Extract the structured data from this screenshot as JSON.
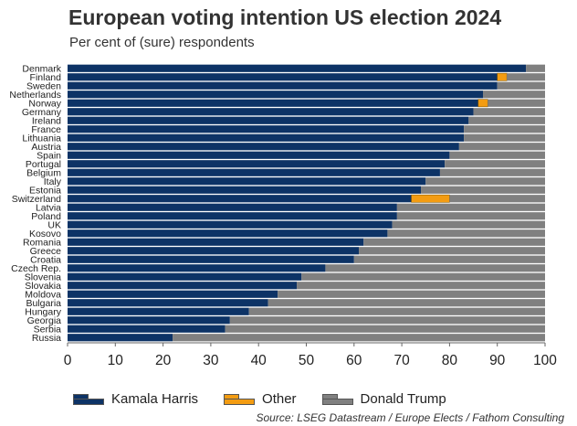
{
  "title": "European voting intention US election 2024",
  "subtitle": "Per cent of (sure) respondents",
  "source": "Source: LSEG Datastream / Europe Elects / Fathom Consulting",
  "colors": {
    "harris": "#0d3366",
    "other": "#f39c12",
    "trump": "#808080"
  },
  "chart_data": {
    "type": "bar",
    "orientation": "horizontal",
    "stacked": true,
    "title": "European voting intention US election 2024",
    "subtitle": "Per cent of (sure) respondents",
    "xlabel": "",
    "ylabel": "",
    "xlim": [
      0,
      100
    ],
    "xticks": [
      0,
      10,
      20,
      30,
      40,
      50,
      60,
      70,
      80,
      90,
      100
    ],
    "categories": [
      "Denmark",
      "Finland",
      "Sweden",
      "Netherlands",
      "Norway",
      "Germany",
      "Ireland",
      "France",
      "Lithuania",
      "Austria",
      "Spain",
      "Portugal",
      "Belgium",
      "Italy",
      "Estonia",
      "Switzerland",
      "Latvia",
      "Poland",
      "UK",
      "Kosovo",
      "Romania",
      "Greece",
      "Croatia",
      "Czech Rep.",
      "Slovenia",
      "Slovakia",
      "Moldova",
      "Bulgaria",
      "Hungary",
      "Georgia",
      "Serbia",
      "Russia"
    ],
    "series": [
      {
        "name": "Kamala Harris",
        "values": [
          96,
          90,
          90,
          87,
          86,
          85,
          84,
          83,
          83,
          82,
          80,
          79,
          78,
          75,
          74,
          72,
          69,
          69,
          68,
          67,
          62,
          61,
          60,
          54,
          49,
          48,
          44,
          42,
          38,
          34,
          33,
          22
        ]
      },
      {
        "name": "Other",
        "values": [
          0,
          2,
          0,
          0,
          2,
          0,
          0,
          0,
          0,
          0,
          0,
          0,
          0,
          0,
          0,
          8,
          0,
          0,
          0,
          0,
          0,
          0,
          0,
          0,
          0,
          0,
          0,
          0,
          0,
          0,
          0,
          0
        ]
      },
      {
        "name": "Donald Trump",
        "values": [
          4,
          8,
          10,
          13,
          12,
          15,
          16,
          17,
          17,
          18,
          20,
          21,
          22,
          25,
          26,
          20,
          31,
          31,
          32,
          33,
          38,
          39,
          40,
          46,
          51,
          52,
          56,
          58,
          62,
          66,
          67,
          78
        ]
      }
    ],
    "legend": [
      "Kamala Harris",
      "Other",
      "Donald Trump"
    ],
    "legend_position": "bottom",
    "grid": false
  }
}
